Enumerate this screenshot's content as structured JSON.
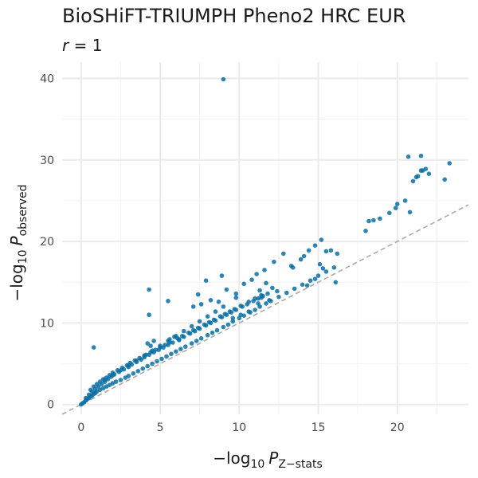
{
  "chart_data": {
    "type": "scatter",
    "title": "BioSHiFT-TRIUMPH Pheno2 HRC EUR",
    "subtitle": {
      "var": "r",
      "rest": " = 1"
    },
    "xlabel": {
      "prefix": "−log",
      "base": "10",
      "var": "P",
      "sub": "Z−stats"
    },
    "ylabel": {
      "prefix": "−log",
      "base": "10",
      "var": "P",
      "sub": "observed"
    },
    "xlim": [
      -1.2,
      24.5
    ],
    "ylim": [
      -1.2,
      42
    ],
    "x_ticks": [
      0,
      5,
      10,
      15,
      20
    ],
    "y_ticks": [
      0,
      10,
      20,
      30,
      40
    ],
    "grid": true,
    "reference_line": {
      "slope": 1,
      "intercept": 0,
      "style": "dashed",
      "color": "#aaaaaa"
    },
    "point_color": "#0a6fa3",
    "x": [
      0.0,
      0.1,
      0.2,
      0.3,
      0.4,
      0.5,
      0.6,
      0.7,
      0.8,
      0.9,
      1.0,
      1.2,
      1.4,
      1.6,
      1.8,
      2.0,
      2.2,
      2.5,
      2.8,
      3.0,
      3.3,
      3.6,
      3.9,
      4.2,
      4.5,
      4.8,
      5.1,
      5.4,
      5.7,
      6.0,
      6.3,
      6.6,
      7.0,
      7.3,
      7.6,
      8.0,
      8.3,
      8.6,
      9.0,
      9.3,
      9.6,
      10.0,
      10.3,
      10.7,
      11.0,
      11.3,
      11.7,
      12.0,
      12.5,
      13.0,
      13.5,
      14.0,
      14.5,
      15.0,
      15.5,
      16.0,
      0.3,
      0.5,
      0.7,
      0.9,
      1.1,
      1.3,
      1.5,
      1.7,
      1.9,
      2.1,
      2.4,
      2.7,
      3.0,
      3.2,
      3.5,
      3.8,
      4.0,
      4.3,
      4.6,
      4.9,
      5.2,
      5.5,
      5.8,
      6.2,
      6.5,
      6.9,
      7.2,
      7.5,
      7.9,
      8.2,
      8.5,
      8.9,
      9.2,
      9.5,
      9.8,
      10.2,
      10.5,
      10.9,
      11.2,
      11.5,
      11.8,
      0.6,
      0.8,
      1.0,
      1.2,
      1.4,
      1.6,
      1.8,
      2.0,
      2.3,
      2.6,
      2.9,
      3.1,
      3.4,
      3.7,
      4.1,
      4.4,
      4.7,
      5.0,
      5.3,
      5.6,
      6.1,
      6.4,
      6.8,
      7.1,
      7.4,
      7.8,
      8.1,
      8.4,
      8.8,
      9.1,
      9.4,
      9.7,
      10.1,
      10.6,
      11.0,
      11.4,
      1.5,
      2.0,
      2.5,
      3.0,
      3.5,
      4.0,
      4.5,
      5.0,
      5.5,
      6.0,
      6.5,
      7.0,
      7.5,
      8.0,
      8.5,
      9.0,
      0.8,
      4.2,
      4.4,
      4.6,
      4.3,
      5.6,
      5.9,
      6.2,
      7.1,
      7.6,
      8.2,
      8.7,
      9.2,
      9.8,
      10.3,
      10.8,
      11.1,
      11.6,
      12.2,
      12.8,
      13.3,
      13.9,
      14.1,
      14.4,
      14.8,
      15.2,
      15.5,
      16.2,
      18.0,
      18.2,
      18.5,
      18.9,
      19.5,
      19.9,
      20.0,
      20.5,
      20.8,
      21.0,
      21.3,
      21.6,
      21.8,
      21.5,
      21.2,
      20.7,
      22.0,
      21.5,
      23.3,
      23.0,
      9.0,
      4.3,
      5.5,
      7.4,
      7.9,
      8.9,
      9.8,
      11.3,
      11.7,
      12.1,
      13.4,
      14.3,
      14.8,
      15.1,
      15.3,
      15.8,
      16.1,
      11.2,
      11.4,
      11.9,
      12.4,
      10.6,
      10.1,
      9.6
    ],
    "y": [
      0.0,
      0.15,
      0.3,
      0.5,
      0.7,
      0.8,
      1.0,
      1.1,
      1.3,
      1.4,
      1.6,
      1.8,
      2.0,
      2.2,
      2.4,
      2.6,
      2.8,
      3.0,
      3.3,
      3.5,
      3.8,
      4.1,
      4.4,
      4.7,
      5.0,
      5.3,
      5.6,
      5.9,
      6.2,
      6.5,
      6.8,
      7.1,
      7.5,
      7.8,
      8.1,
      8.5,
      8.8,
      9.1,
      9.5,
      9.8,
      10.2,
      10.6,
      10.9,
      11.3,
      11.6,
      12.0,
      12.4,
      12.7,
      13.2,
      13.7,
      14.2,
      14.7,
      15.2,
      15.8,
      16.3,
      16.8,
      0.8,
      1.2,
      1.6,
      1.9,
      2.2,
      2.5,
      2.8,
      3.1,
      3.4,
      3.7,
      4.0,
      4.3,
      4.6,
      4.9,
      5.2,
      5.5,
      5.8,
      6.1,
      6.4,
      6.7,
      7.0,
      7.3,
      7.6,
      8.0,
      8.3,
      8.7,
      9.0,
      9.3,
      9.7,
      10.0,
      10.3,
      10.7,
      11.0,
      11.3,
      11.6,
      12.0,
      12.3,
      12.7,
      13.0,
      13.3,
      13.6,
      1.8,
      2.2,
      2.5,
      2.8,
      3.1,
      3.3,
      3.6,
      3.9,
      4.2,
      4.5,
      4.8,
      5.1,
      5.4,
      5.7,
      6.1,
      6.4,
      6.7,
      7.0,
      7.3,
      7.6,
      8.1,
      8.4,
      8.8,
      9.1,
      9.4,
      9.8,
      10.1,
      10.4,
      10.8,
      11.1,
      11.4,
      11.7,
      12.1,
      12.6,
      13.0,
      13.4,
      3.0,
      3.6,
      4.2,
      4.8,
      5.4,
      6.0,
      6.6,
      7.2,
      7.8,
      8.4,
      9.0,
      9.6,
      10.2,
      10.8,
      11.4,
      12.0,
      7.0,
      7.5,
      7.2,
      7.8,
      11.0,
      8.0,
      8.3,
      7.9,
      12.0,
      12.3,
      12.8,
      12.6,
      14.1,
      13.6,
      14.8,
      15.3,
      16.0,
      16.5,
      17.5,
      18.5,
      17.0,
      17.8,
      18.2,
      18.9,
      19.5,
      20.2,
      18.8,
      18.5,
      21.3,
      22.5,
      22.6,
      22.8,
      23.5,
      24.1,
      24.6,
      25.0,
      23.6,
      27.4,
      28.0,
      28.7,
      28.9,
      28.7,
      27.9,
      30.4,
      28.3,
      30.5,
      29.6,
      27.6,
      39.9,
      14.1,
      12.7,
      13.5,
      15.2,
      15.8,
      13.1,
      14.0,
      14.9,
      14.3,
      16.8,
      14.6,
      15.4,
      17.2,
      16.7,
      18.9,
      15.0,
      12.4,
      13.1,
      12.8,
      13.9,
      11.4,
      11.0,
      10.6
    ]
  }
}
